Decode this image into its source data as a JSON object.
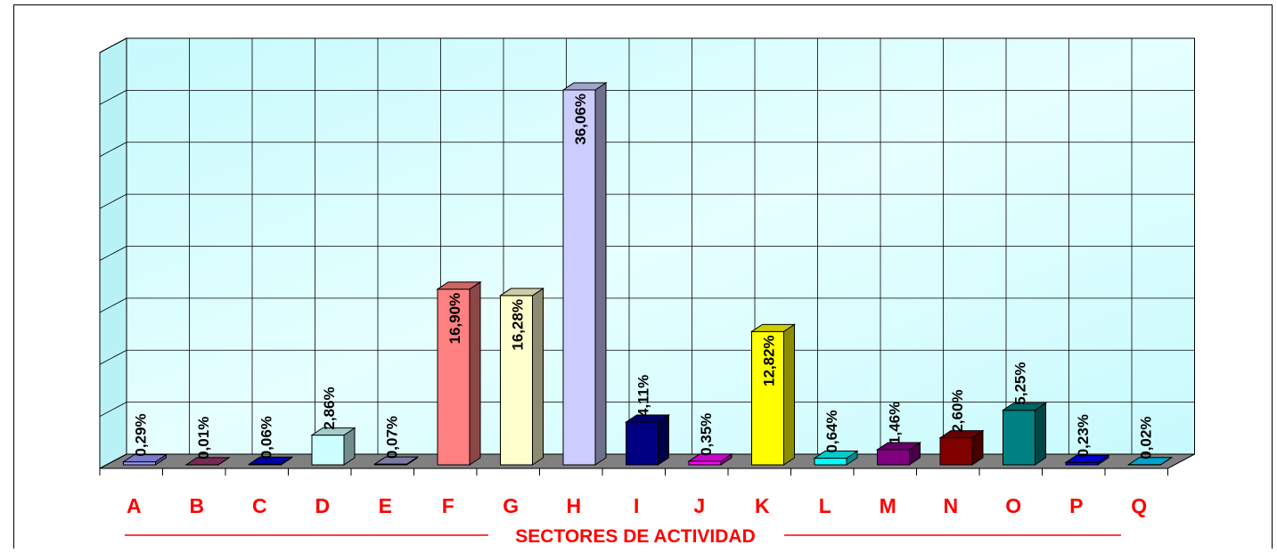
{
  "chart_data": {
    "type": "bar3d",
    "x_label": "SECTORES DE ACTIVIDAD",
    "categories": [
      "A",
      "B",
      "C",
      "D",
      "E",
      "F",
      "G",
      "H",
      "I",
      "J",
      "K",
      "L",
      "M",
      "N",
      "O",
      "P",
      "Q"
    ],
    "values": [
      0.29,
      0.01,
      0.06,
      2.86,
      0.07,
      16.9,
      16.28,
      36.06,
      4.11,
      0.35,
      12.82,
      0.64,
      1.46,
      2.6,
      5.25,
      0.23,
      0.02
    ],
    "value_labels": [
      "0,29%",
      "0,01%",
      "0,06%",
      "2,86%",
      "0,07%",
      "16,90%",
      "16,28%",
      "36,06%",
      "4,11%",
      "0,35%",
      "12,82%",
      "0,64%",
      "1,46%",
      "2,60%",
      "5,25%",
      "0,23%",
      "0,02%"
    ],
    "colors": [
      "#9999ff",
      "#993366",
      "#0000cc",
      "#ccffff",
      "#9999cc",
      "#ff8080",
      "#ffffcc",
      "#ccccff",
      "#000080",
      "#ff00ff",
      "#ffff00",
      "#00ffff",
      "#800080",
      "#800000",
      "#008080",
      "#0000ff",
      "#00ccff"
    ],
    "ylim": [
      0,
      40
    ],
    "yticks": [
      0,
      5,
      10,
      15,
      20,
      25,
      30,
      35,
      40
    ],
    "grid": true
  }
}
